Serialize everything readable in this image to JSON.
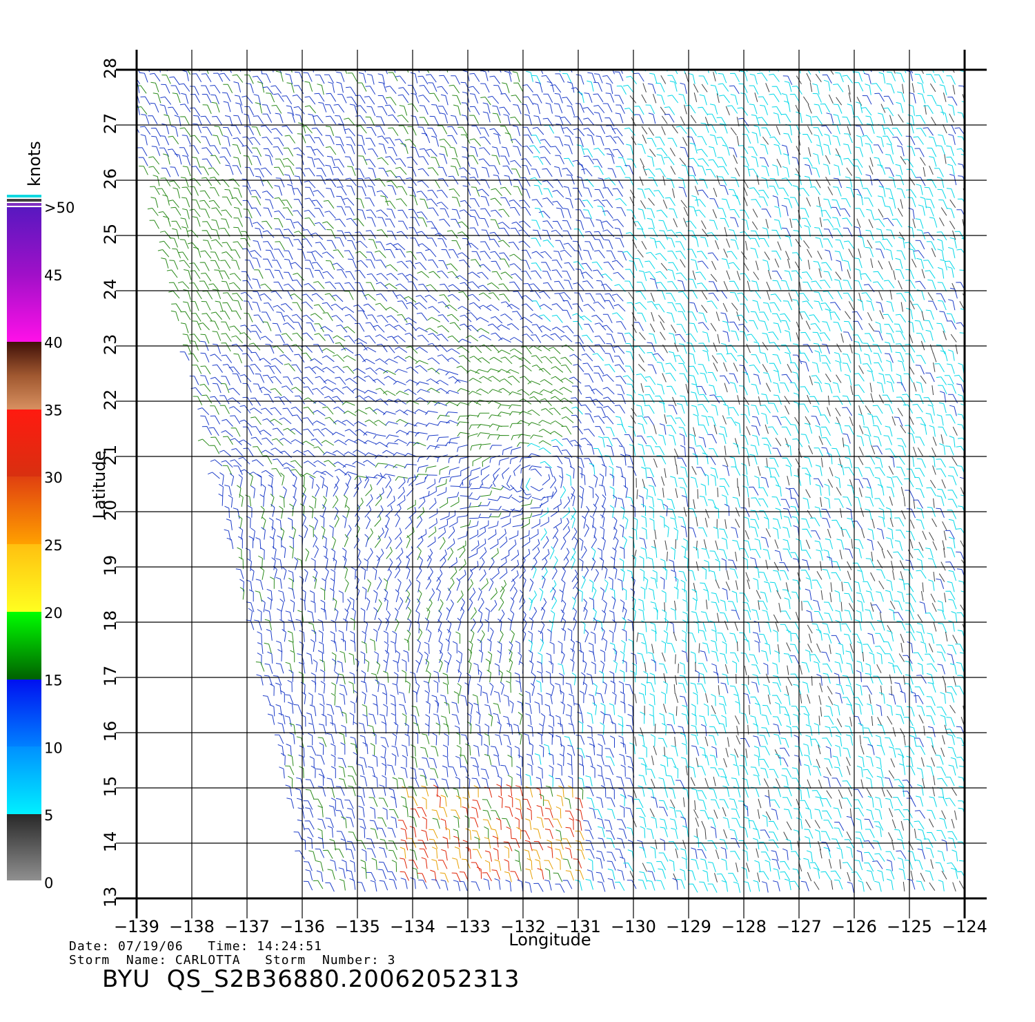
{
  "map": {
    "lon_ticks": [
      "-139",
      "-138",
      "-137",
      "-136",
      "-135",
      "-134",
      "-133",
      "-132",
      "-131",
      "-130",
      "-129",
      "-128",
      "-127",
      "-126",
      "-125",
      "-124"
    ],
    "lat_ticks": [
      "13",
      "14",
      "15",
      "16",
      "17",
      "18",
      "19",
      "20",
      "21",
      "22",
      "23",
      "24",
      "25",
      "26",
      "27",
      "28"
    ],
    "lon_range": [
      -139,
      -124
    ],
    "lat_range": [
      13,
      28
    ],
    "xlabel": "Longitude",
    "ylabel": "Latitude",
    "storm_center": {
      "lon": -131.7,
      "lat": 20.6
    }
  },
  "colorbar": {
    "unit": "knots",
    "labels": [
      {
        "value": "0",
        "level": 0
      },
      {
        "value": "5",
        "level": 5
      },
      {
        "value": "10",
        "level": 10
      },
      {
        "value": "15",
        "level": 15
      },
      {
        "value": "20",
        "level": 20
      },
      {
        "value": "25",
        "level": 25
      },
      {
        "value": "30",
        "level": 30
      },
      {
        "value": "35",
        "level": 35
      },
      {
        "value": "40",
        "level": 40
      },
      {
        "value": "45",
        "level": 45
      },
      {
        "value": ">50",
        "level": 50
      }
    ],
    "colors": {
      "calm": "#404040",
      "light": "#00d8e8",
      "moderate": "#1c3cc8",
      "fresh": "#2a8a1a",
      "strong": "#e8a000",
      "gale": "#e02000"
    }
  },
  "info": {
    "date_line": "Date: 07/19/06   Time: 14:24:51",
    "storm_line": "Storm  Name: CARLOTTA   Storm  Number: 3",
    "product": "BYU  QS_S2B36880.20062052313"
  }
}
